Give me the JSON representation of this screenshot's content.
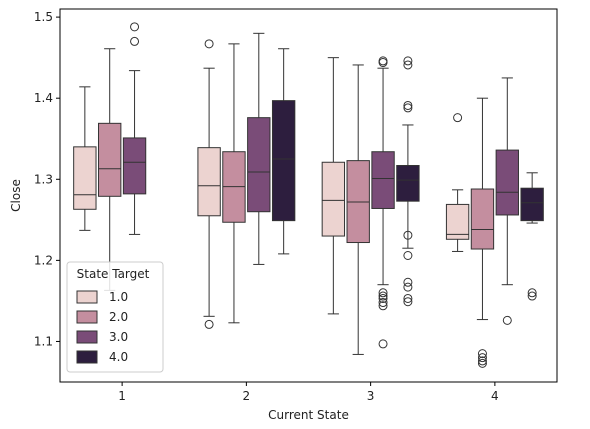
{
  "chart_data": {
    "type": "box",
    "xlabel": "Current State",
    "ylabel": "Close",
    "categories": [
      "1",
      "2",
      "3",
      "4"
    ],
    "ylim": [
      1.05,
      1.51
    ],
    "yticks": [
      "1.1",
      "1.2",
      "1.3",
      "1.4",
      "1.5"
    ],
    "legend": {
      "title": "State Target",
      "position": "lower-left"
    },
    "series": [
      {
        "name": "1.0",
        "color": "#ecd3d0",
        "boxes": [
          {
            "category": "1",
            "whisker_low": 1.237,
            "q1": 1.263,
            "median": 1.281,
            "q3": 1.34,
            "whisker_high": 1.414,
            "outliers": []
          },
          {
            "category": "2",
            "whisker_low": 1.131,
            "q1": 1.255,
            "median": 1.292,
            "q3": 1.339,
            "whisker_high": 1.437,
            "outliers": [
              1.121,
              1.467
            ]
          },
          {
            "category": "3",
            "whisker_low": 1.134,
            "q1": 1.23,
            "median": 1.274,
            "q3": 1.321,
            "whisker_high": 1.45,
            "outliers": []
          },
          {
            "category": "4",
            "whisker_low": 1.211,
            "q1": 1.226,
            "median": 1.232,
            "q3": 1.269,
            "whisker_high": 1.287,
            "outliers": [
              1.376
            ]
          }
        ]
      },
      {
        "name": "2.0",
        "color": "#c48e9f",
        "boxes": [
          {
            "category": "1",
            "whisker_low": 1.163,
            "q1": 1.279,
            "median": 1.313,
            "q3": 1.369,
            "whisker_high": 1.461,
            "outliers": []
          },
          {
            "category": "2",
            "whisker_low": 1.123,
            "q1": 1.247,
            "median": 1.291,
            "q3": 1.334,
            "whisker_high": 1.467,
            "outliers": []
          },
          {
            "category": "3",
            "whisker_low": 1.084,
            "q1": 1.222,
            "median": 1.272,
            "q3": 1.323,
            "whisker_high": 1.441,
            "outliers": []
          },
          {
            "category": "4",
            "whisker_low": 1.127,
            "q1": 1.214,
            "median": 1.238,
            "q3": 1.288,
            "whisker_high": 1.4,
            "outliers": [
              1.085,
              1.08,
              1.076,
              1.073
            ]
          }
        ]
      },
      {
        "name": "3.0",
        "color": "#7a4c78",
        "boxes": [
          {
            "category": "1",
            "whisker_low": 1.232,
            "q1": 1.282,
            "median": 1.321,
            "q3": 1.351,
            "whisker_high": 1.434,
            "outliers": [
              1.47,
              1.488
            ]
          },
          {
            "category": "2",
            "whisker_low": 1.195,
            "q1": 1.26,
            "median": 1.309,
            "q3": 1.376,
            "whisker_high": 1.48,
            "outliers": []
          },
          {
            "category": "3",
            "whisker_low": 1.17,
            "q1": 1.264,
            "median": 1.301,
            "q3": 1.334,
            "whisker_high": 1.437,
            "outliers": [
              1.444,
              1.446,
              1.16,
              1.156,
              1.153,
              1.148,
              1.144,
              1.097
            ]
          },
          {
            "category": "4",
            "whisker_low": 1.17,
            "q1": 1.256,
            "median": 1.284,
            "q3": 1.336,
            "whisker_high": 1.425,
            "outliers": [
              1.126
            ]
          }
        ]
      },
      {
        "name": "4.0",
        "color": "#2d1e3e",
        "boxes": [
          {
            "category": "2",
            "whisker_low": 1.208,
            "q1": 1.249,
            "median": 1.325,
            "q3": 1.397,
            "whisker_high": 1.461,
            "outliers": []
          },
          {
            "category": "3",
            "whisker_low": 1.215,
            "q1": 1.273,
            "median": 1.299,
            "q3": 1.317,
            "whisker_high": 1.367,
            "outliers": [
              1.446,
              1.441,
              1.391,
              1.388,
              1.231,
              1.206,
              1.173,
              1.167,
              1.153,
              1.149
            ]
          },
          {
            "category": "4",
            "whisker_low": 1.246,
            "q1": 1.249,
            "median": 1.271,
            "q3": 1.289,
            "whisker_high": 1.308,
            "outliers": [
              1.16,
              1.156
            ]
          }
        ]
      }
    ]
  }
}
